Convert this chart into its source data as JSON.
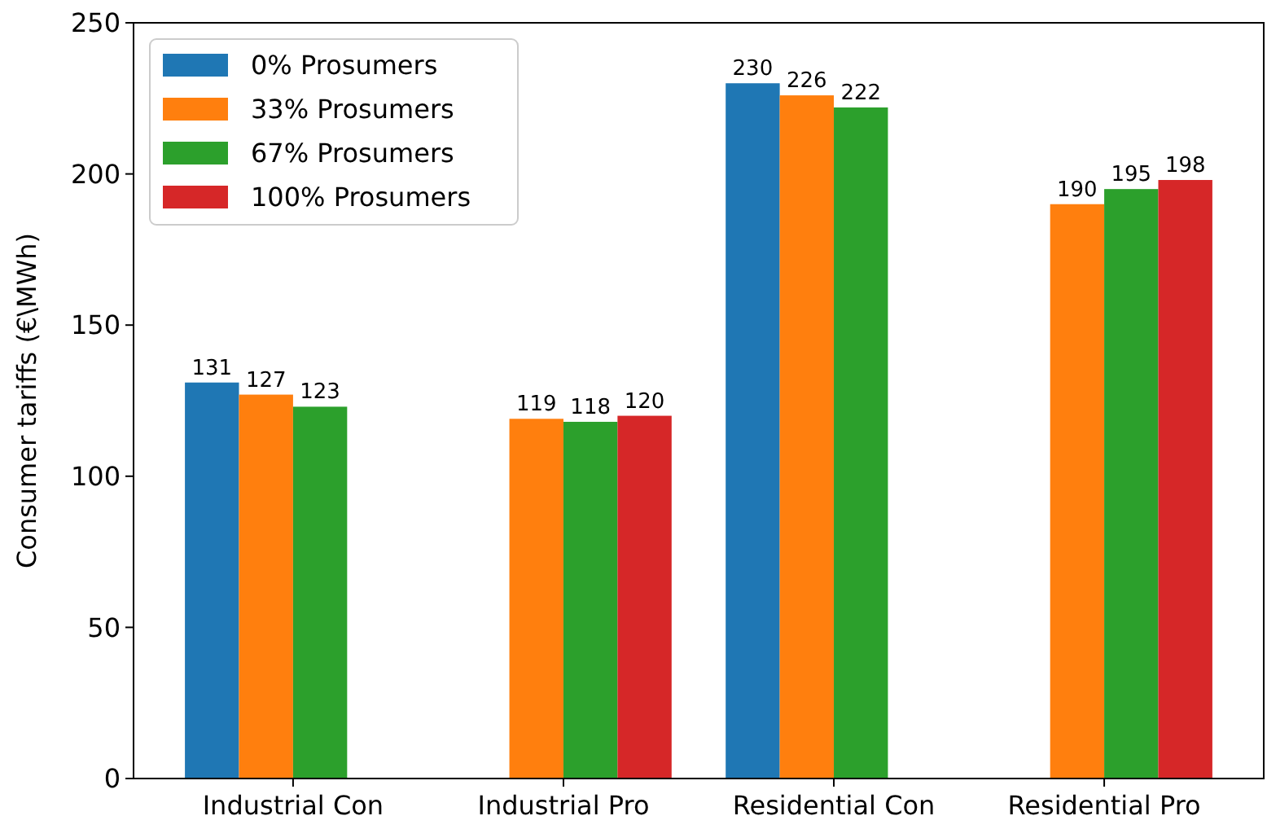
{
  "chart_data": {
    "type": "bar",
    "ylabel": "Consumer tariffs (€\\MWh)",
    "categories": [
      "Industrial Con",
      "Industrial Pro",
      "Residential Con",
      "Residential Pro"
    ],
    "series": [
      {
        "name": "0% Prosumers",
        "color": "#1f77b4",
        "values": [
          131,
          null,
          230,
          null
        ]
      },
      {
        "name": "33% Prosumers",
        "color": "#ff7f0e",
        "values": [
          127,
          119,
          226,
          190
        ]
      },
      {
        "name": "67% Prosumers",
        "color": "#2ca02c",
        "values": [
          123,
          118,
          222,
          195
        ]
      },
      {
        "name": "100% Prosumers",
        "color": "#d62728",
        "values": [
          null,
          120,
          null,
          198
        ]
      }
    ],
    "ylim": [
      0,
      250
    ],
    "yticks": [
      0,
      50,
      100,
      150,
      200,
      250
    ],
    "data_labels": true,
    "legend": "top left"
  }
}
